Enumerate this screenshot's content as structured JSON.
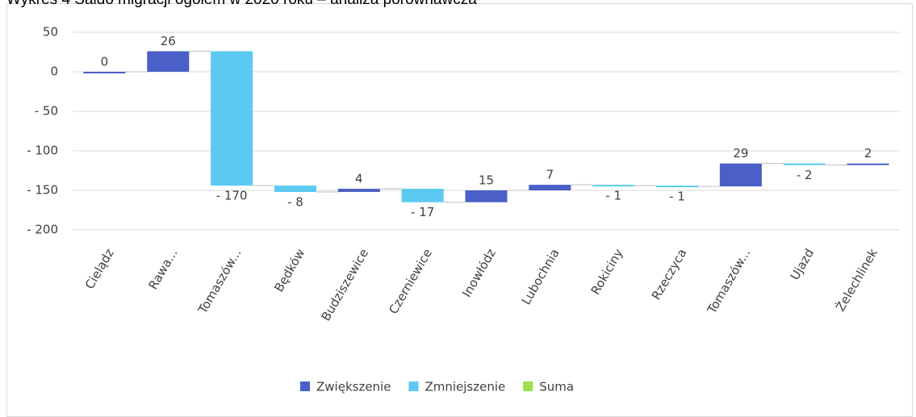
{
  "chart_data": {
    "type": "waterfall",
    "title": "Wykres 4 Saldo migracji ogółem w 2020 roku – analiza porównawcza",
    "categories": [
      "Cielądz",
      "Rawa...",
      "Tomaszów...",
      "Będków",
      "Budziszewice",
      "Czerniewice",
      "Inowłódz",
      "Lubochnia",
      "Rokiciny",
      "Rzeczyca",
      "Tomaszów...",
      "Ujazd",
      "Żelechlinek"
    ],
    "values": [
      0,
      26,
      -170,
      -8,
      4,
      -17,
      15,
      7,
      -1,
      -1,
      29,
      -2,
      2
    ],
    "value_labels": [
      "0",
      "26",
      "- 170",
      "- 8",
      "4",
      "- 17",
      "15",
      "7",
      "- 1",
      "- 1",
      "29",
      "- 2",
      "2"
    ],
    "legend": [
      {
        "name": "Zwiększenie",
        "color": "#4a5fc7"
      },
      {
        "name": "Zmniejszenie",
        "color": "#5bc9f2"
      },
      {
        "name": "Suma",
        "color": "#9be24c"
      }
    ],
    "ylim": [
      -200,
      50
    ],
    "yticks": [
      50,
      0,
      {
        "value": -50,
        "label": "- 50"
      },
      {
        "value": -100,
        "label": "- 100"
      },
      {
        "value": -150,
        "label": "- 150"
      },
      {
        "value": -200,
        "label": "- 200"
      }
    ],
    "grid": true
  }
}
